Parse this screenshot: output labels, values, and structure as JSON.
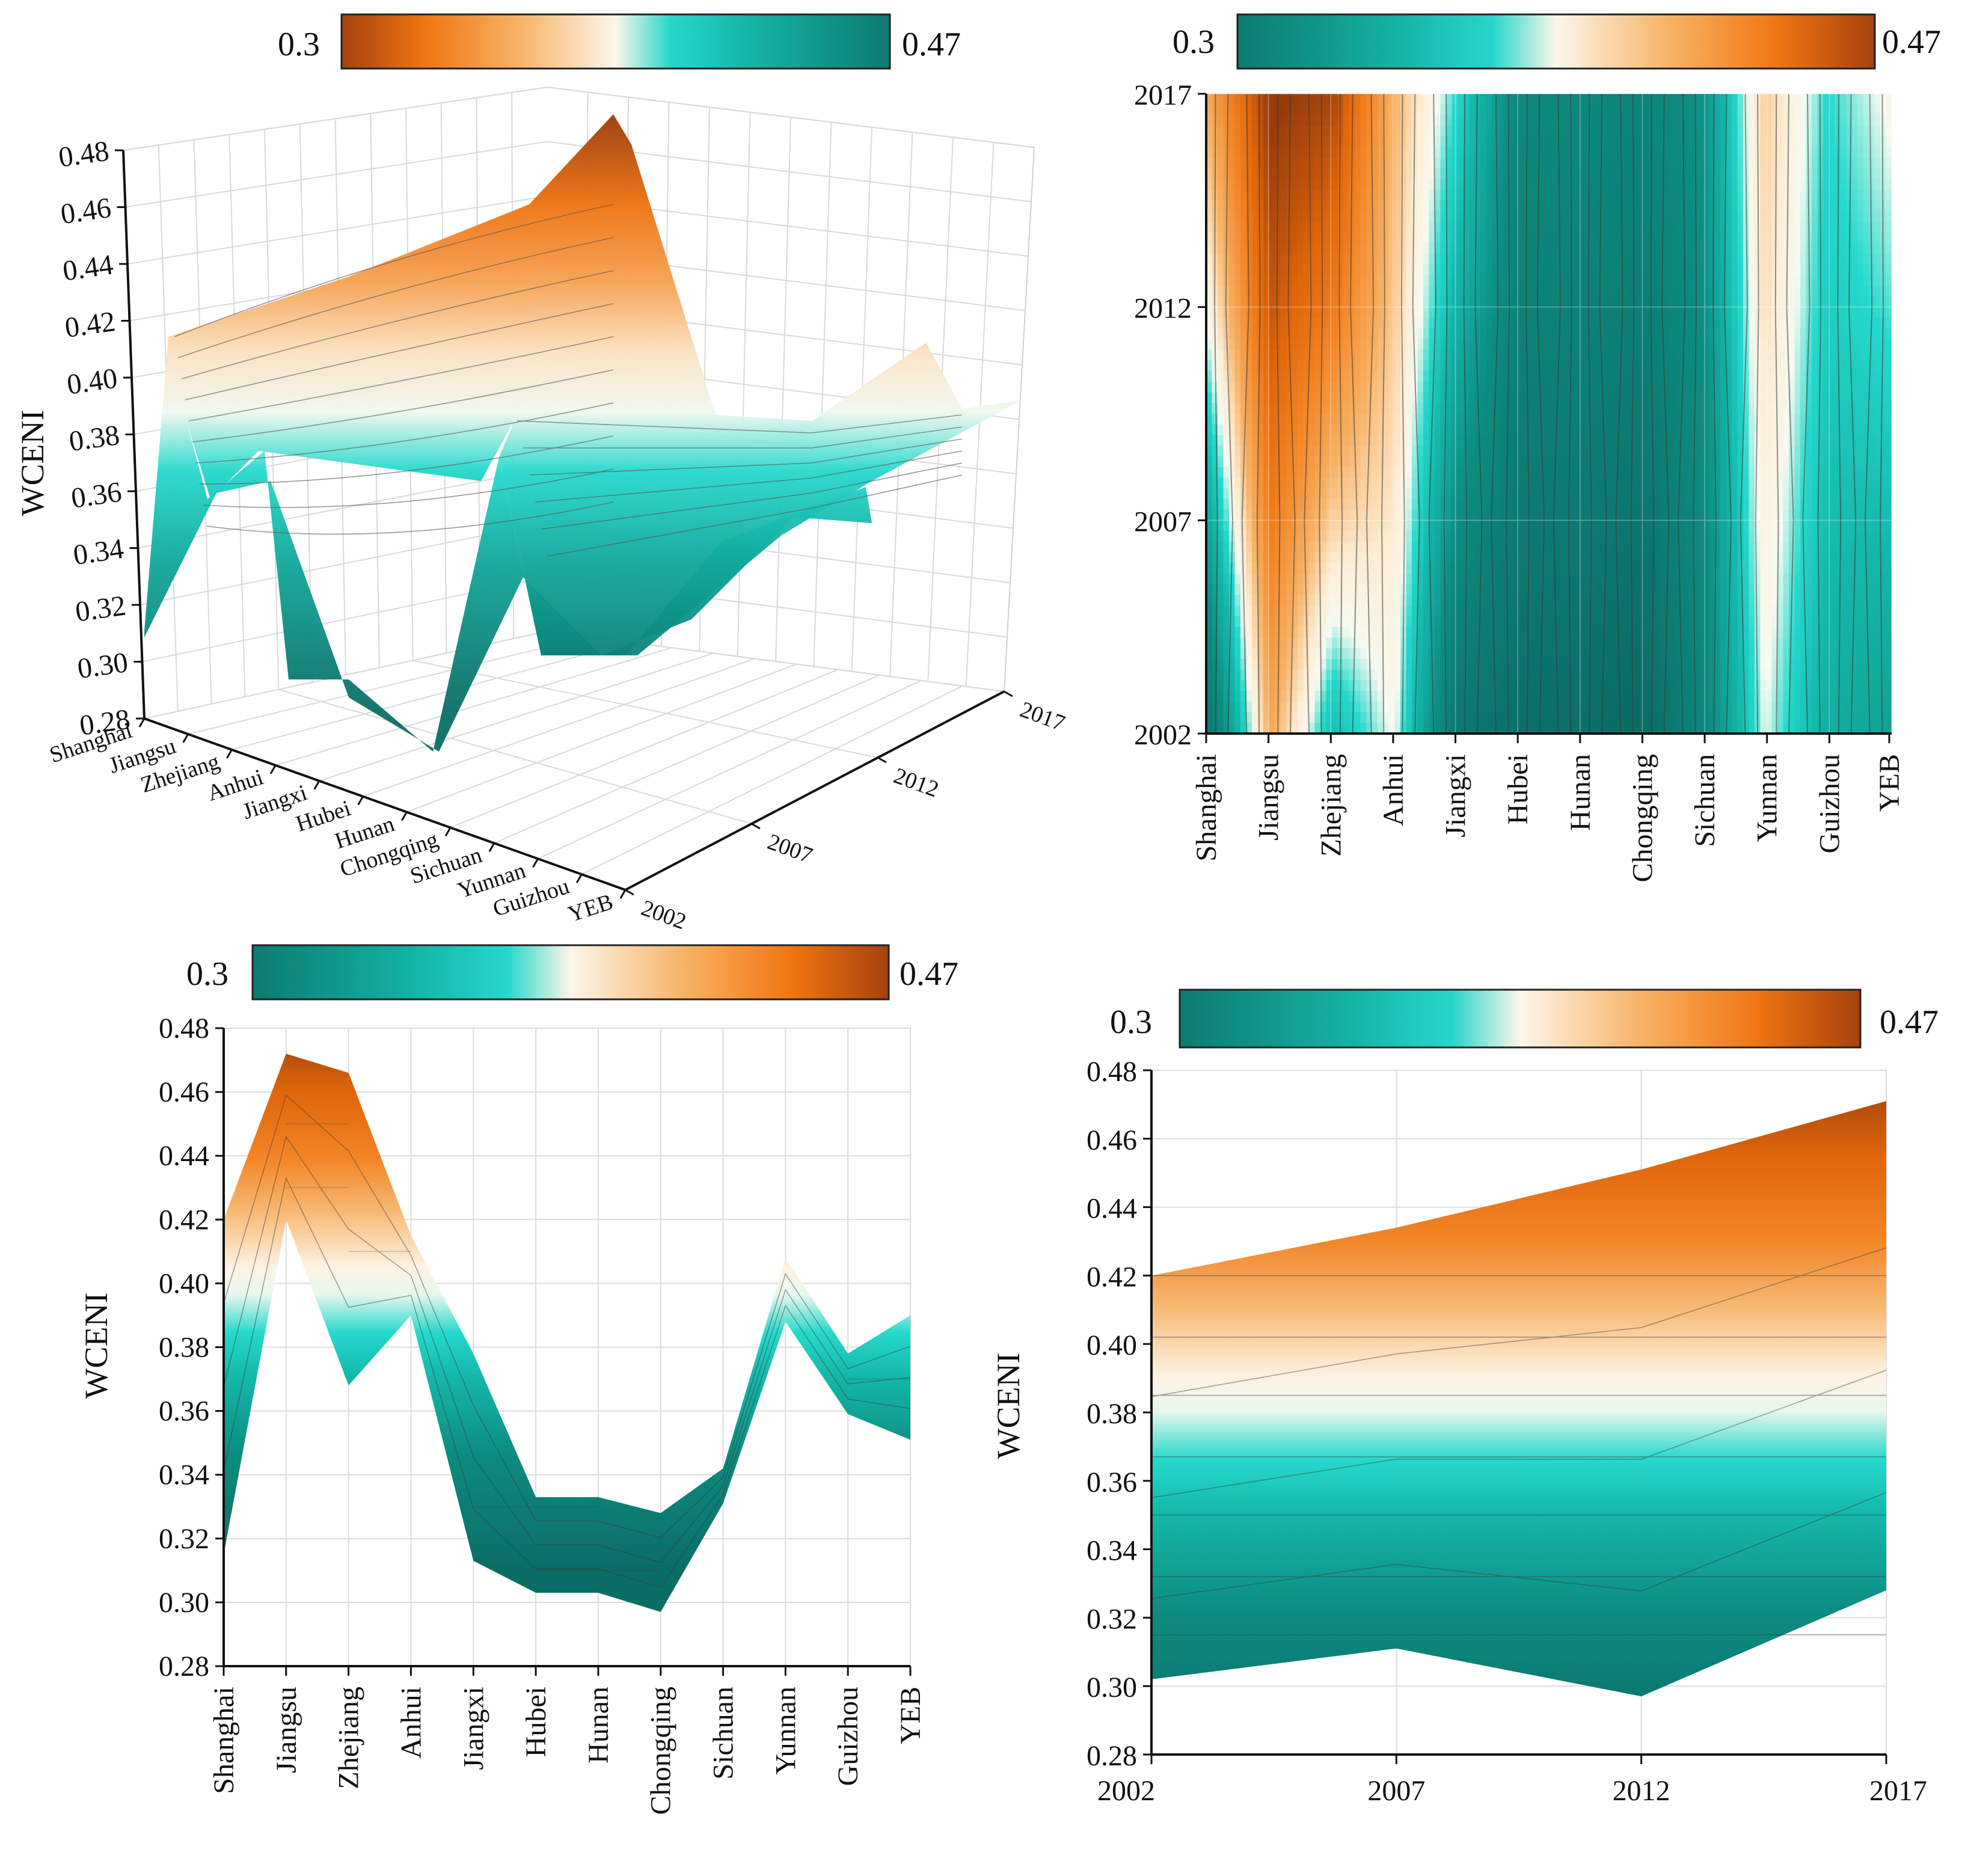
{
  "chart_data": [
    {
      "panel": "a",
      "type": "surface3d",
      "ylabel": "WCENI",
      "zlim": [
        0.28,
        0.48
      ],
      "zticks": [
        "0.28",
        "0.30",
        "0.32",
        "0.34",
        "0.36",
        "0.38",
        "0.40",
        "0.42",
        "0.44",
        "0.46",
        "0.48"
      ],
      "regions": [
        "Shanghai",
        "Jiangsu",
        "Zhejiang",
        "Anhui",
        "Jiangxi",
        "Hubei",
        "Hunan",
        "Chongqing",
        "Sichuan",
        "Yunnan",
        "Guizhou",
        "YEB"
      ],
      "years": [
        "2002",
        "2007",
        "2012",
        "2017"
      ],
      "colorbar": {
        "min_label": "0.3",
        "max_label": "0.47",
        "scheme": "orange-white-teal"
      }
    },
    {
      "panel": "b",
      "type": "heatmap",
      "regions": [
        "Shanghai",
        "Jiangsu",
        "Zhejiang",
        "Anhui",
        "Jiangxi",
        "Hubei",
        "Hunan",
        "Chongqing",
        "Sichuan",
        "Yunnan",
        "Guizhou",
        "YEB"
      ],
      "years": [
        "2002",
        "2007",
        "2012",
        "2017"
      ],
      "colorbar": {
        "min_label": "0.3",
        "max_label": "0.47",
        "scheme": "teal-white-orange"
      }
    },
    {
      "panel": "c",
      "type": "area",
      "ylabel": "WCENI",
      "ylim": [
        0.28,
        0.48
      ],
      "yticks": [
        "0.28",
        "0.30",
        "0.32",
        "0.34",
        "0.36",
        "0.38",
        "0.40",
        "0.42",
        "0.44",
        "0.46",
        "0.48"
      ],
      "categories": [
        "Shanghai",
        "Jiangsu",
        "Zhejiang",
        "Anhui",
        "Jiangxi",
        "Hubei",
        "Hunan",
        "Chongqing",
        "Sichuan",
        "Yunnan",
        "Guizhou",
        "YEB"
      ],
      "upper": [
        0.42,
        0.472,
        0.466,
        0.415,
        0.378,
        0.333,
        0.333,
        0.328,
        0.342,
        0.408,
        0.378,
        0.39
      ],
      "lower": [
        0.315,
        0.42,
        0.368,
        0.39,
        0.313,
        0.303,
        0.303,
        0.297,
        0.331,
        0.388,
        0.359,
        0.351
      ],
      "colorbar": {
        "min_label": "0.3",
        "max_label": "0.47",
        "scheme": "teal-white-orange"
      }
    },
    {
      "panel": "d",
      "type": "area",
      "ylabel": "WCENI",
      "ylim": [
        0.28,
        0.48
      ],
      "yticks": [
        "0.28",
        "0.30",
        "0.32",
        "0.34",
        "0.36",
        "0.38",
        "0.40",
        "0.42",
        "0.44",
        "0.46",
        "0.48"
      ],
      "x": [
        "2002",
        "2007",
        "2012",
        "2017"
      ],
      "upper": [
        0.42,
        0.434,
        0.451,
        0.471
      ],
      "lower": [
        0.302,
        0.311,
        0.297,
        0.328
      ],
      "colorbar": {
        "min_label": "0.3",
        "max_label": "0.47",
        "scheme": "teal-white-orange"
      }
    }
  ]
}
